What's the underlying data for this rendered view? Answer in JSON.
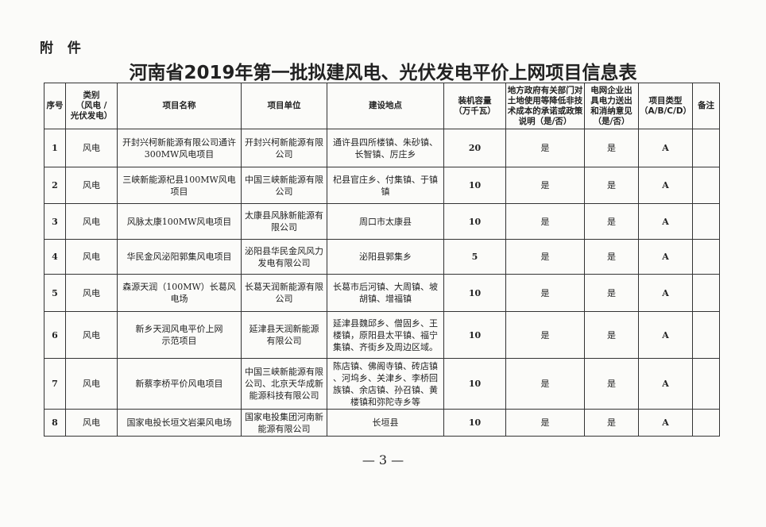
{
  "attachment_label": "附 件",
  "title": "河南省2019年第一批拟建风电、光伏发电平价上网项目信息表",
  "headers": [
    "序号",
    "类别\n（风电 /\n光伏发电）",
    "项目名称",
    "项目单位",
    "建设地点",
    "装机容量\n（万千瓦）",
    "地方政府有关部门对\n土地使用等降低非技\n术成本的承诺或政策\n说明（是/否）",
    "电网企业出\n具电力送出\n和消纳意见\n（是/否）",
    "项目类型\n（A/B/C/D）",
    "备注"
  ],
  "rows": [
    {
      "no": "1",
      "type": "风电",
      "name": "开封兴柯新能源有限公司通许\n300MW风电项目",
      "unit": "开封兴柯新能源有限\n公司",
      "location": "通许县四所楼镇、朱砂镇、\n长智镇、厉庄乡",
      "capacity": "20",
      "gov": "是",
      "grid": "是",
      "ptype": "A",
      "note": ""
    },
    {
      "no": "2",
      "type": "风电",
      "name": "三峡新能源杞县100MW风电\n项目",
      "unit": "中国三峡新能源有限\n公司",
      "location": "杞县官庄乡、付集镇、于镇\n镇",
      "capacity": "10",
      "gov": "是",
      "grid": "是",
      "ptype": "A",
      "note": ""
    },
    {
      "no": "3",
      "type": "风电",
      "name": "风脉太康100MW风电项目",
      "unit": "太康县风脉新能源有\n限公司",
      "location": "周口市太康县",
      "capacity": "10",
      "gov": "是",
      "grid": "是",
      "ptype": "A",
      "note": ""
    },
    {
      "no": "4",
      "type": "风电",
      "name": "华民金风泌阳郭集风电项目",
      "unit": "泌阳县华民金风风力\n发电有限公司",
      "location": "泌阳县郭集乡",
      "capacity": "5",
      "gov": "是",
      "grid": "是",
      "ptype": "A",
      "note": ""
    },
    {
      "no": "5",
      "type": "风电",
      "name": "森源天润（100MW）长葛风\n电场",
      "unit": "长葛天润新能源有限\n公司",
      "location": "长葛市后河镇、大周镇、坡\n胡镇、增福镇",
      "capacity": "10",
      "gov": "是",
      "grid": "是",
      "ptype": "A",
      "note": ""
    },
    {
      "no": "6",
      "type": "风电",
      "name": "新乡天润风电平价上网\n示范项目",
      "unit": "延津县天润新能源\n有限公司",
      "location": "延津县魏邱乡、僧固乡、王\n楼镇，原阳县太平镇、福宁\n集镇、齐街乡及周边区域。",
      "capacity": "10",
      "gov": "是",
      "grid": "是",
      "ptype": "A",
      "note": ""
    },
    {
      "no": "7",
      "type": "风电",
      "name": "新蔡李桥平价风电项目",
      "unit": "中国三峡新能源有限\n公司、北京天华成新\n能源科技有限公司",
      "location": "陈店镇、佛阁寺镇、砖店镇\n、河坞乡、关津乡、李桥回\n族镇、余店镇、孙召镇、黄\n楼镇和弥陀寺乡等",
      "capacity": "10",
      "gov": "是",
      "grid": "是",
      "ptype": "A",
      "note": ""
    },
    {
      "no": "8",
      "type": "风电",
      "name": "国家电投长垣文岩渠风电场",
      "unit": "国家电投集团河南新\n能源有限公司",
      "location": "长垣县",
      "capacity": "10",
      "gov": "是",
      "grid": "是",
      "ptype": "A",
      "note": ""
    }
  ],
  "page_number": "— 3 —"
}
